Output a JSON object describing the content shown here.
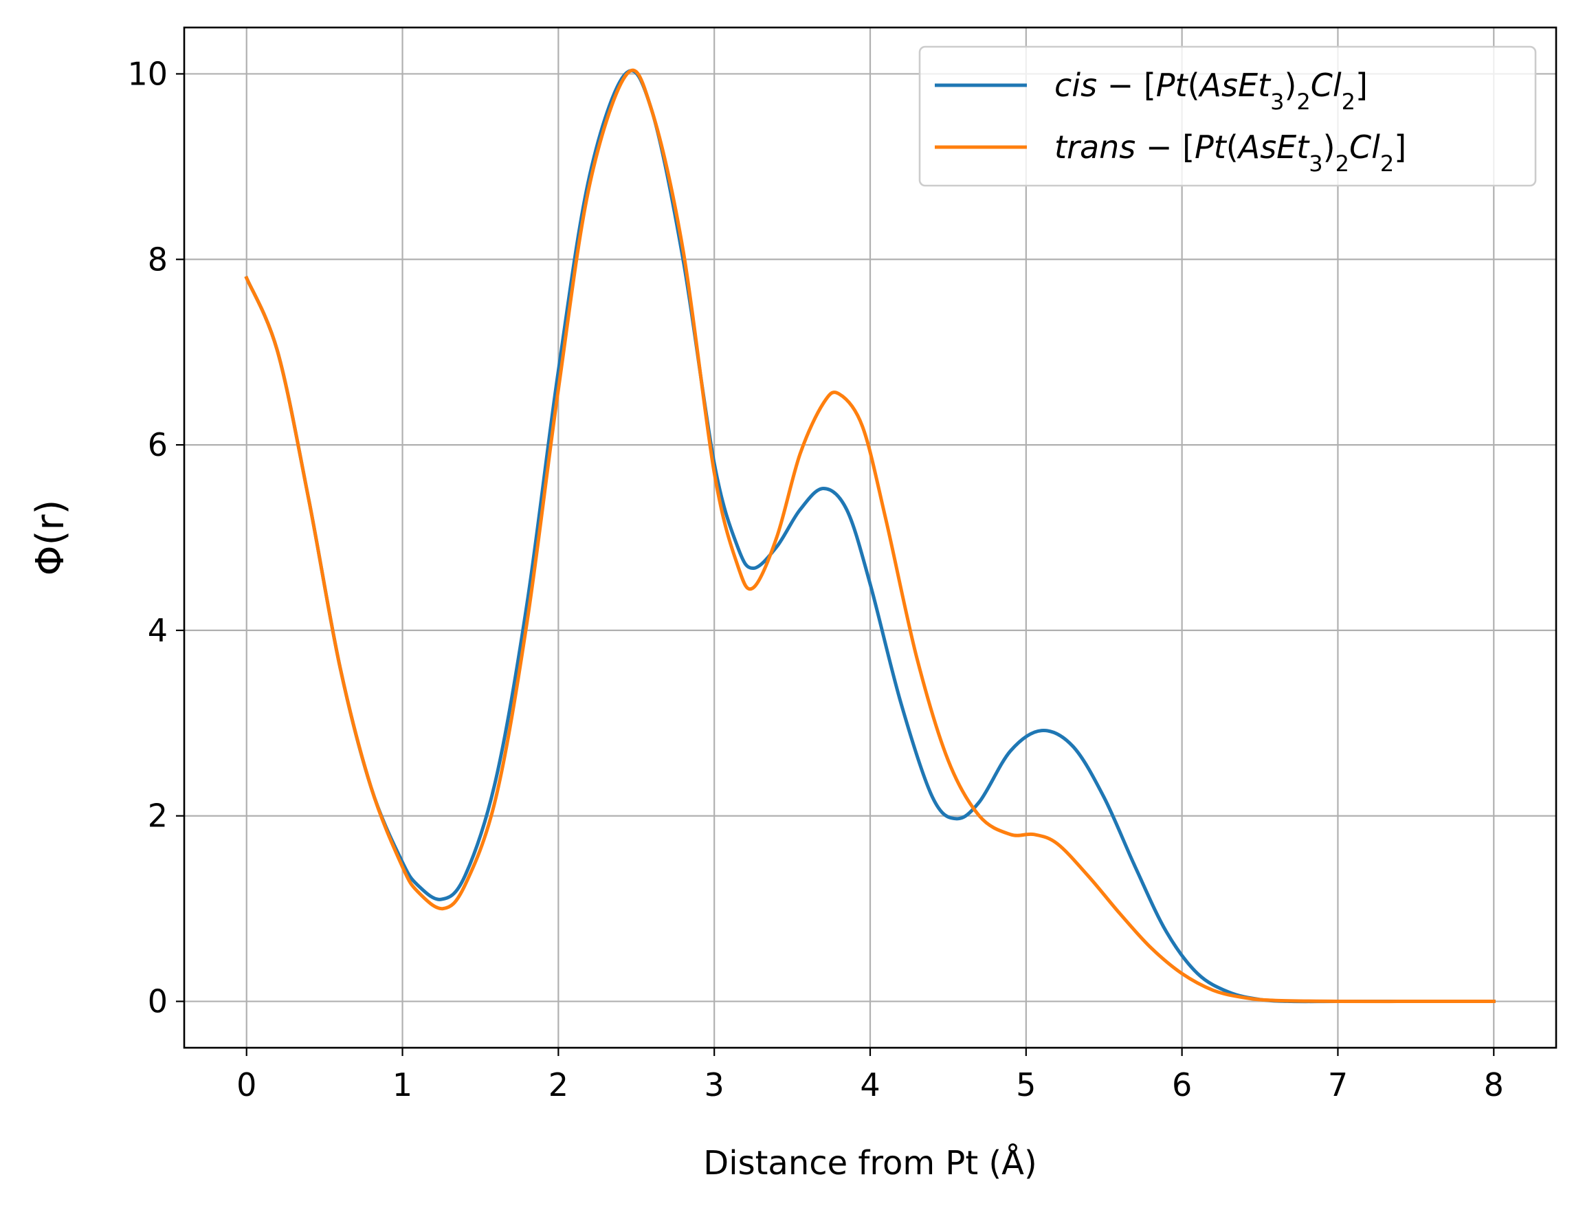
{
  "chart_data": {
    "type": "line",
    "xlabel": "Distance from Pt (Å)",
    "ylabel": "Φ(r)",
    "xlim": [
      -0.4,
      8.4
    ],
    "ylim": [
      -0.5,
      10.5
    ],
    "xticks": [
      "0",
      "1",
      "2",
      "3",
      "4",
      "5",
      "6",
      "7",
      "8"
    ],
    "yticks": [
      "0",
      "2",
      "4",
      "6",
      "8",
      "10"
    ],
    "grid": true,
    "legend_position": "top-right",
    "series": [
      {
        "name": "cis − [Pt(AsEt3)2Cl2]",
        "color": "#1f77b4",
        "x": [
          0,
          0.2,
          0.4,
          0.6,
          0.8,
          1.0,
          1.1,
          1.25,
          1.4,
          1.6,
          1.8,
          2.0,
          2.2,
          2.43,
          2.6,
          2.8,
          3.0,
          3.15,
          3.25,
          3.4,
          3.55,
          3.7,
          3.85,
          4.0,
          4.2,
          4.4,
          4.55,
          4.7,
          4.9,
          5.1,
          5.3,
          5.5,
          5.7,
          5.9,
          6.1,
          6.3,
          6.5,
          6.7,
          7.0,
          7.5,
          8.0
        ],
        "y": [
          7.8,
          7.0,
          5.4,
          3.6,
          2.3,
          1.5,
          1.25,
          1.1,
          1.35,
          2.4,
          4.3,
          6.8,
          8.9,
          10.0,
          9.6,
          8.0,
          5.8,
          4.9,
          4.67,
          4.9,
          5.3,
          5.53,
          5.3,
          4.5,
          3.2,
          2.2,
          1.97,
          2.15,
          2.7,
          2.92,
          2.75,
          2.2,
          1.45,
          0.75,
          0.3,
          0.1,
          0.02,
          0.0,
          0.0,
          0.0,
          0.0
        ]
      },
      {
        "name": "trans − [Pt(AsEt3)2Cl2]",
        "color": "#ff7f0e",
        "x": [
          0,
          0.2,
          0.4,
          0.6,
          0.8,
          1.0,
          1.1,
          1.26,
          1.4,
          1.6,
          1.8,
          2.0,
          2.2,
          2.44,
          2.6,
          2.8,
          3.0,
          3.15,
          3.25,
          3.4,
          3.55,
          3.7,
          3.8,
          3.95,
          4.1,
          4.3,
          4.5,
          4.7,
          4.9,
          5.05,
          5.2,
          5.4,
          5.6,
          5.8,
          6.0,
          6.2,
          6.4,
          6.6,
          7.0,
          7.5,
          8.0
        ],
        "y": [
          7.8,
          7.0,
          5.4,
          3.6,
          2.3,
          1.45,
          1.18,
          1.0,
          1.25,
          2.2,
          4.1,
          6.6,
          8.8,
          10.0,
          9.6,
          8.1,
          5.7,
          4.7,
          4.46,
          5.0,
          5.9,
          6.45,
          6.55,
          6.2,
          5.2,
          3.7,
          2.6,
          2.0,
          1.8,
          1.8,
          1.7,
          1.35,
          0.95,
          0.58,
          0.3,
          0.12,
          0.04,
          0.01,
          0.0,
          0.0,
          0.0
        ]
      }
    ]
  }
}
